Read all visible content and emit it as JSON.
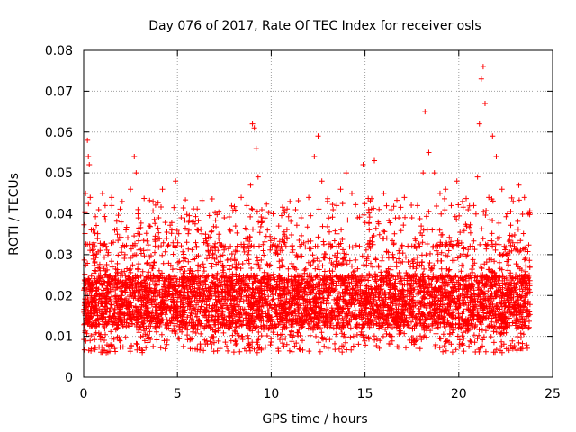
{
  "chart_data": {
    "type": "scatter",
    "title": "Day 076 of 2017, Rate Of TEC Index for receiver osls",
    "xlabel": "GPS time / hours",
    "ylabel": "ROTI / TECUs",
    "xlim": [
      0,
      25
    ],
    "ylim": [
      0,
      0.08
    ],
    "x_ticks": [
      0,
      5,
      10,
      15,
      20,
      25
    ],
    "x_tick_labels": [
      "0",
      "5",
      "10",
      "15",
      "20",
      "25"
    ],
    "y_ticks": [
      0,
      0.01,
      0.02,
      0.03,
      0.04,
      0.05,
      0.06,
      0.07,
      0.08
    ],
    "y_tick_labels": [
      "0",
      "0.01",
      "0.02",
      "0.03",
      "0.04",
      "0.05",
      "0.06",
      "0.07",
      "0.08"
    ],
    "grid": true,
    "legend": "none",
    "marker": "plus",
    "color": "#ff0000",
    "series": [
      {
        "x": [
          0.1,
          0.2,
          0.25,
          0.3,
          0.35,
          0.5,
          0.6,
          0.8,
          1.0,
          1.2,
          1.5,
          1.8,
          2.0,
          2.2,
          2.5,
          2.7,
          2.8,
          2.9,
          3.0,
          3.2,
          3.5,
          3.7,
          4.0,
          4.2,
          4.4,
          4.7,
          4.9,
          5.2,
          5.5,
          5.8,
          6.1,
          6.5,
          6.9,
          7.2,
          7.5,
          7.8,
          8.1,
          8.4,
          8.7,
          8.9,
          9.0,
          9.1,
          9.2,
          9.3,
          9.5,
          9.8,
          10.1,
          10.4,
          10.7,
          11.0,
          11.3,
          11.6,
          12.0,
          12.3,
          12.5,
          12.7,
          13.0,
          13.3,
          13.7,
          14.0,
          14.3,
          14.6,
          14.9,
          15.2,
          15.5,
          15.7,
          16.0,
          16.4,
          16.8,
          17.1,
          17.5,
          17.8,
          18.1,
          18.2,
          18.4,
          18.7,
          19.0,
          19.3,
          19.6,
          19.9,
          20.2,
          20.5,
          20.8,
          21.0,
          21.1,
          21.2,
          21.3,
          21.4,
          21.6,
          21.8,
          22.0,
          22.3,
          22.6,
          22.9,
          23.2,
          23.5,
          23.7
        ],
        "y": [
          0.045,
          0.058,
          0.054,
          0.052,
          0.044,
          0.036,
          0.028,
          0.041,
          0.045,
          0.032,
          0.042,
          0.035,
          0.038,
          0.03,
          0.046,
          0.054,
          0.05,
          0.04,
          0.035,
          0.031,
          0.037,
          0.043,
          0.039,
          0.046,
          0.034,
          0.036,
          0.048,
          0.039,
          0.033,
          0.038,
          0.036,
          0.035,
          0.03,
          0.034,
          0.039,
          0.036,
          0.037,
          0.044,
          0.042,
          0.047,
          0.062,
          0.061,
          0.056,
          0.049,
          0.041,
          0.036,
          0.04,
          0.037,
          0.035,
          0.043,
          0.041,
          0.039,
          0.044,
          0.054,
          0.059,
          0.048,
          0.043,
          0.041,
          0.046,
          0.05,
          0.045,
          0.039,
          0.052,
          0.041,
          0.053,
          0.038,
          0.045,
          0.041,
          0.039,
          0.044,
          0.039,
          0.042,
          0.05,
          0.065,
          0.055,
          0.05,
          0.045,
          0.046,
          0.042,
          0.048,
          0.043,
          0.041,
          0.042,
          0.049,
          0.062,
          0.073,
          0.076,
          0.067,
          0.044,
          0.059,
          0.054,
          0.046,
          0.04,
          0.043,
          0.047,
          0.044,
          0.04
        ]
      }
    ],
    "band": {
      "x_start": 0,
      "x_end": 23.8,
      "typical_low": 0.006,
      "typical_high": 0.032,
      "dense_low": 0.012,
      "dense_high": 0.025
    }
  }
}
